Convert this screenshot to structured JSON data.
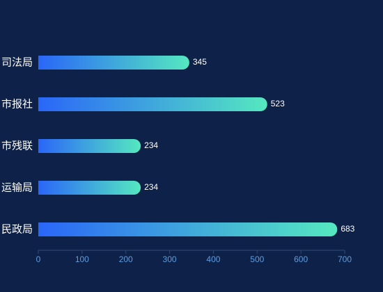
{
  "chart_data": {
    "type": "hbar",
    "categories": [
      "司法局",
      "市报社",
      "市残联",
      "运输局",
      "民政局"
    ],
    "values": [
      345,
      523,
      234,
      234,
      683
    ],
    "gradient": [
      "#2a66f8",
      "#55e8c0"
    ],
    "xlim": [
      0,
      700
    ],
    "xticks": [
      0,
      100,
      200,
      300,
      400,
      500,
      600,
      700
    ]
  }
}
